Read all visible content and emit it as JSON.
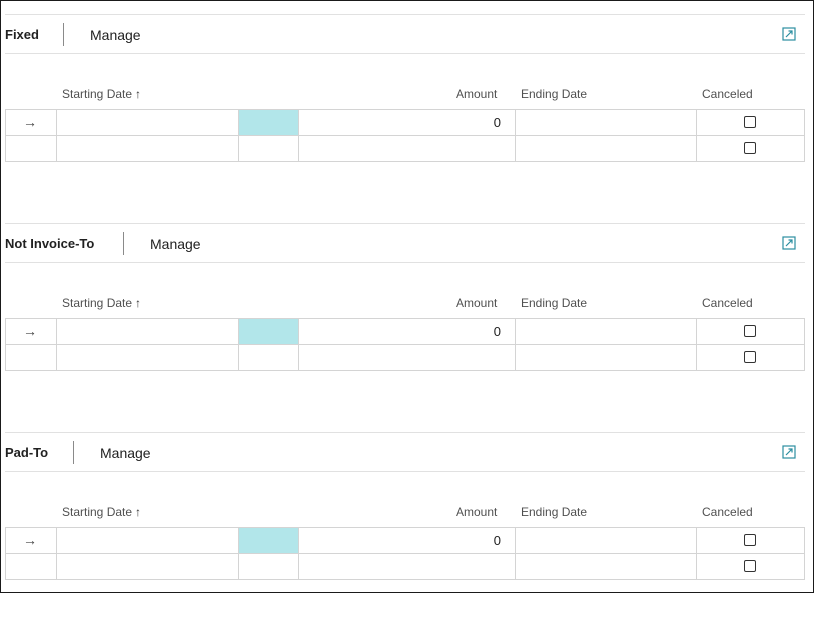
{
  "sections": [
    {
      "title": "Fixed",
      "manage_label": "Manage",
      "columns": {
        "starting_date": "Starting Date",
        "sort_indicator": "↑",
        "amount": "Amount",
        "ending_date": "Ending Date",
        "canceled": "Canceled"
      },
      "rows": [
        {
          "arrow": "→",
          "amount": "0",
          "canceled": false
        },
        {
          "arrow": "",
          "amount": "",
          "canceled": false
        }
      ]
    },
    {
      "title": "Not Invoice-To",
      "manage_label": "Manage",
      "columns": {
        "starting_date": "Starting Date",
        "sort_indicator": "↑",
        "amount": "Amount",
        "ending_date": "Ending Date",
        "canceled": "Canceled"
      },
      "rows": [
        {
          "arrow": "→",
          "amount": "0",
          "canceled": false
        },
        {
          "arrow": "",
          "amount": "",
          "canceled": false
        }
      ]
    },
    {
      "title": "Pad-To",
      "manage_label": "Manage",
      "columns": {
        "starting_date": "Starting Date",
        "sort_indicator": "↑",
        "amount": "Amount",
        "ending_date": "Ending Date",
        "canceled": "Canceled"
      },
      "rows": [
        {
          "arrow": "→",
          "amount": "0",
          "canceled": false
        },
        {
          "arrow": "",
          "amount": "",
          "canceled": false
        }
      ]
    }
  ],
  "colors": {
    "highlight_cell": "#b2e6ea",
    "accent_icon": "#2b8ea0"
  },
  "icons": {
    "expand": "expand-icon",
    "row_pointer": "row-arrow-icon"
  }
}
